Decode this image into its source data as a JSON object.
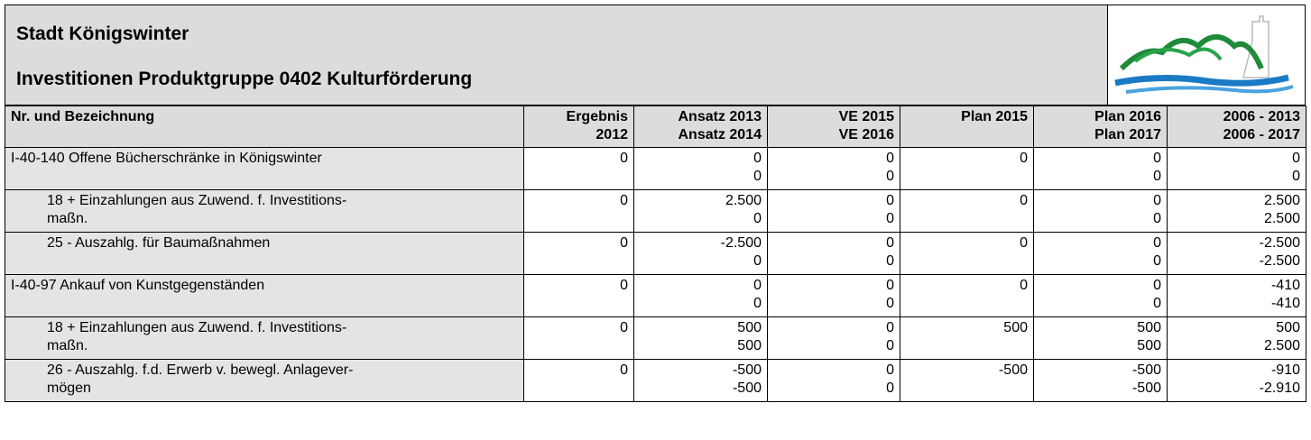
{
  "header": {
    "title": "Stadt Königswinter",
    "subtitle": "Investitionen Produktgruppe 0402 Kulturförderung"
  },
  "table": {
    "columns": [
      [
        "Nr. und Bezeichnung"
      ],
      [
        "Ergebnis",
        "2012"
      ],
      [
        "Ansatz 2013",
        "Ansatz 2014"
      ],
      [
        "VE 2015",
        "VE 2016"
      ],
      [
        "Plan 2015"
      ],
      [
        "Plan 2016",
        "Plan 2017"
      ],
      [
        "2006 - 2013",
        "2006 - 2017"
      ]
    ],
    "rows": [
      {
        "name": [
          "I-40-140 Offene Bücherschränke in Königswinter"
        ],
        "cells": [
          [
            "0"
          ],
          [
            "0",
            "0"
          ],
          [
            "0",
            "0"
          ],
          [
            "0"
          ],
          [
            "0",
            "0"
          ],
          [
            "0",
            "0"
          ]
        ]
      },
      {
        "name": [
          "18 + Einzahlungen aus Zuwend. f. Investitions-",
          "maßn."
        ],
        "indent": true,
        "cells": [
          [
            "0"
          ],
          [
            "2.500",
            "0"
          ],
          [
            "0",
            "0"
          ],
          [
            "0"
          ],
          [
            "0",
            "0"
          ],
          [
            "2.500",
            "2.500"
          ]
        ]
      },
      {
        "name": [
          "25 - Auszahlg. für Baumaßnahmen"
        ],
        "indent": true,
        "cells": [
          [
            "0"
          ],
          [
            "-2.500",
            "0"
          ],
          [
            "0",
            "0"
          ],
          [
            "0"
          ],
          [
            "0",
            "0"
          ],
          [
            "-2.500",
            "-2.500"
          ]
        ]
      },
      {
        "name": [
          "I-40-97 Ankauf von Kunstgegenständen"
        ],
        "cells": [
          [
            "0"
          ],
          [
            "0",
            "0"
          ],
          [
            "0",
            "0"
          ],
          [
            "0"
          ],
          [
            "0",
            "0"
          ],
          [
            "-410",
            "-410"
          ]
        ]
      },
      {
        "name": [
          "18 + Einzahlungen aus Zuwend. f. Investitions-",
          "maßn."
        ],
        "indent": true,
        "cells": [
          [
            "0"
          ],
          [
            "500",
            "500"
          ],
          [
            "0",
            "0"
          ],
          [
            "500"
          ],
          [
            "500",
            "500"
          ],
          [
            "500",
            "2.500"
          ]
        ]
      },
      {
        "name": [
          "26 - Auszahlg. f.d. Erwerb v. bewegl. Anlagever-",
          "mögen"
        ],
        "indent": true,
        "cells": [
          [
            "0"
          ],
          [
            "-500",
            "-500"
          ],
          [
            "0",
            "0"
          ],
          [
            "-500"
          ],
          [
            "-500",
            "-500"
          ],
          [
            "-910",
            "-2.910"
          ]
        ]
      }
    ]
  }
}
